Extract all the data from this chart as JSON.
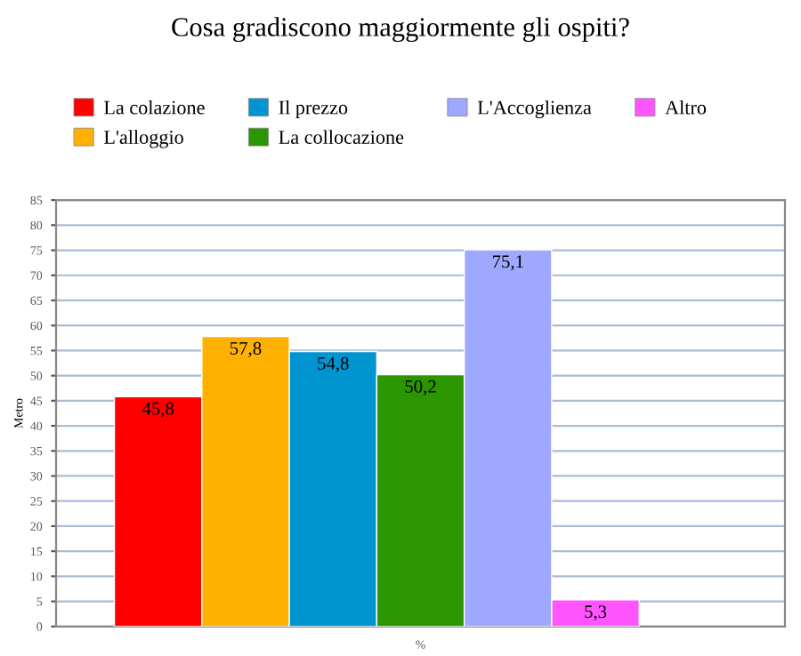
{
  "chart_data": {
    "type": "bar",
    "title": "Cosa gradiscono maggiormente gli ospiti?",
    "xlabel": "%",
    "ylabel": "Metro",
    "categories": [
      null
    ],
    "series": [
      {
        "name": "La colazione",
        "color": "#ff0000",
        "values": [
          45.8
        ],
        "value_labels": [
          "45,8"
        ]
      },
      {
        "name": "L'alloggio",
        "color": "#ffb000",
        "values": [
          57.8
        ],
        "value_labels": [
          "57,8"
        ]
      },
      {
        "name": "Il prezzo",
        "color": "#0095d0",
        "values": [
          54.8
        ],
        "value_labels": [
          "54,8"
        ]
      },
      {
        "name": "La collocazione",
        "color": "#2a9600",
        "values": [
          50.2
        ],
        "value_labels": [
          "50,2"
        ]
      },
      {
        "name": "L'Accoglienza",
        "color": "#9fa8ff",
        "values": [
          75.1
        ],
        "value_labels": [
          "75,1"
        ]
      },
      {
        "name": "Altro",
        "color": "#ff55ff",
        "values": [
          5.3
        ],
        "value_labels": [
          "5,3"
        ]
      }
    ],
    "ylim": [
      0,
      85
    ],
    "yticks": [
      0,
      5,
      10,
      15,
      20,
      25,
      30,
      35,
      40,
      45,
      50,
      55,
      60,
      65,
      70,
      75,
      80,
      85
    ],
    "grid": "y",
    "legend": "top"
  }
}
